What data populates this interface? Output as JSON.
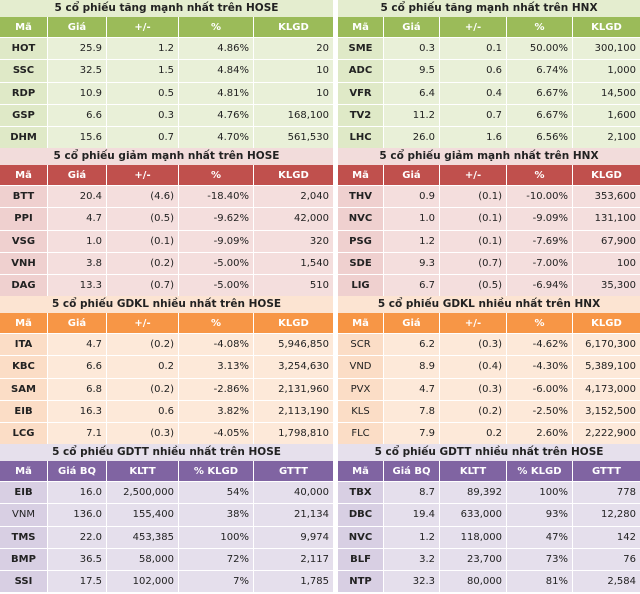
{
  "sections": [
    {
      "title": "5 cổ phiếu tăng mạnh nhất trên HOSE",
      "headers": [
        "Mã",
        "Giá",
        "+/-",
        "%",
        "KLGD"
      ],
      "rows": [
        [
          "HOT",
          "25.9",
          "1.2",
          "4.86%",
          "20"
        ],
        [
          "SSC",
          "32.5",
          "1.5",
          "4.84%",
          "10"
        ],
        [
          "RDP",
          "10.9",
          "0.5",
          "4.81%",
          "10"
        ],
        [
          "GSP",
          "6.6",
          "0.3",
          "4.76%",
          "168,100"
        ],
        [
          "DHM",
          "15.6",
          "0.7",
          "4.70%",
          "561,530"
        ]
      ]
    },
    {
      "title": "5 cổ phiếu tăng mạnh nhất trên HNX",
      "headers": [
        "Mã",
        "Giá",
        "+/-",
        "%",
        "KLGD"
      ],
      "rows": [
        [
          "SME",
          "0.3",
          "0.1",
          "50.00%",
          "300,100"
        ],
        [
          "ADC",
          "9.5",
          "0.6",
          "6.74%",
          "1,000"
        ],
        [
          "VFR",
          "6.4",
          "0.4",
          "6.67%",
          "14,500"
        ],
        [
          "TV2",
          "11.2",
          "0.7",
          "6.67%",
          "1,600"
        ],
        [
          "LHC",
          "26.0",
          "1.6",
          "6.56%",
          "2,100"
        ]
      ]
    },
    {
      "title": "5 cổ phiếu giảm mạnh nhất trên HOSE",
      "headers": [
        "Mã",
        "Giá",
        "+/-",
        "%",
        "KLGD"
      ],
      "rows": [
        [
          "BTT",
          "20.4",
          "(4.6)",
          "-18.40%",
          "2,040"
        ],
        [
          "PPI",
          "4.7",
          "(0.5)",
          "-9.62%",
          "42,000"
        ],
        [
          "VSG",
          "1.0",
          "(0.1)",
          "-9.09%",
          "320"
        ],
        [
          "VNH",
          "3.8",
          "(0.2)",
          "-5.00%",
          "1,540"
        ],
        [
          "DAG",
          "13.3",
          "(0.7)",
          "-5.00%",
          "510"
        ]
      ]
    },
    {
      "title": "5 cổ phiếu giảm mạnh nhất trên HNX",
      "headers": [
        "Mã",
        "Giá",
        "+/-",
        "%",
        "KLGD"
      ],
      "rows": [
        [
          "THV",
          "0.9",
          "(0.1)",
          "-10.00%",
          "353,600"
        ],
        [
          "NVC",
          "1.0",
          "(0.1)",
          "-9.09%",
          "131,100"
        ],
        [
          "PSG",
          "1.2",
          "(0.1)",
          "-7.69%",
          "67,900"
        ],
        [
          "SDE",
          "9.3",
          "(0.7)",
          "-7.00%",
          "100"
        ],
        [
          "LIG",
          "6.7",
          "(0.5)",
          "-6.94%",
          "35,300"
        ]
      ]
    },
    {
      "title": "5 cổ phiếu GDKL nhiều nhất trên HOSE",
      "headers": [
        "Mã",
        "Giá",
        "+/-",
        "%",
        "KLGD"
      ],
      "rows": [
        [
          "ITA",
          "4.7",
          "(0.2)",
          "-4.08%",
          "5,946,850"
        ],
        [
          "KBC",
          "6.6",
          "0.2",
          "3.13%",
          "3,254,630"
        ],
        [
          "SAM",
          "6.8",
          "(0.2)",
          "-2.86%",
          "2,131,960"
        ],
        [
          "EIB",
          "16.3",
          "0.6",
          "3.82%",
          "2,113,190"
        ],
        [
          "LCG",
          "7.1",
          "(0.3)",
          "-4.05%",
          "1,798,810"
        ]
      ]
    },
    {
      "title": "5 cổ phiếu GDKL nhiều nhất trên HNX",
      "headers": [
        "Mã",
        "Giá",
        "+/-",
        "%",
        "KLGD"
      ],
      "rows": [
        [
          "SCR",
          "6.2",
          "(0.3)",
          "-4.62%",
          "6,170,300"
        ],
        [
          "VND",
          "8.9",
          "(0.4)",
          "-4.30%",
          "5,389,100"
        ],
        [
          "PVX",
          "4.7",
          "(0.3)",
          "-6.00%",
          "4,173,000"
        ],
        [
          "KLS",
          "7.8",
          "(0.2)",
          "-2.50%",
          "3,152,500"
        ],
        [
          "FLC",
          "7.9",
          "0.2",
          "2.60%",
          "2,222,900"
        ]
      ]
    },
    {
      "title": "5 cổ phiếu GDTT nhiều nhất trên HOSE",
      "headers": [
        "Mã",
        "Giá BQ",
        "KLTT",
        "% KLGD",
        "GTTT"
      ],
      "rows": [
        [
          "EIB",
          "16.0",
          "2,500,000",
          "54%",
          "40,000"
        ],
        [
          "VNM",
          "136.0",
          "155,400",
          "38%",
          "21,134"
        ],
        [
          "TMS",
          "22.0",
          "453,385",
          "100%",
          "9,974"
        ],
        [
          "BMP",
          "36.5",
          "58,000",
          "72%",
          "2,117"
        ],
        [
          "SSI",
          "17.5",
          "102,000",
          "7%",
          "1,785"
        ]
      ]
    },
    {
      "title": "5 cổ phiếu GDTT nhiều nhất trên HOSE",
      "headers": [
        "Mã",
        "Giá BQ",
        "KLTT",
        "% KLGD",
        "GTTT"
      ],
      "rows": [
        [
          "TBX",
          "8.7",
          "89,392",
          "100%",
          "778"
        ],
        [
          "DBC",
          "19.4",
          "633,000",
          "93%",
          "12,280"
        ],
        [
          "NVC",
          "1.2",
          "118,000",
          "47%",
          "142"
        ],
        [
          "BLF",
          "3.2",
          "23,700",
          "73%",
          "76"
        ],
        [
          "NTP",
          "32.3",
          "80,000",
          "81%",
          "2,584"
        ]
      ]
    }
  ],
  "colors": {
    "green": "#9bbb59",
    "red": "#c0504d",
    "orange": "#f79646",
    "purple": "#8064a2"
  }
}
